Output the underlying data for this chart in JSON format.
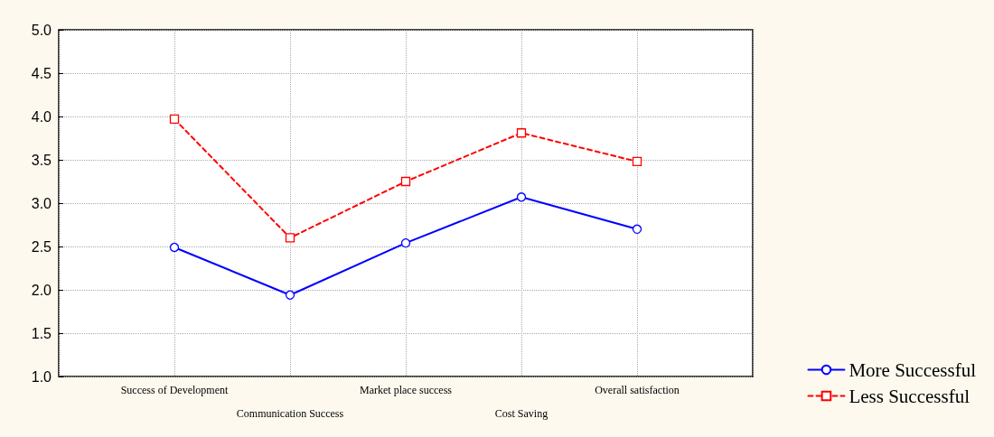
{
  "chart_data": {
    "type": "line",
    "categories": [
      "Success of Development",
      "Communication Success",
      "Market place success",
      "Cost Saving",
      "Overall satisfaction"
    ],
    "series": [
      {
        "name": "More Successful",
        "color": "#0000ff",
        "marker": "circle",
        "line_style": "solid",
        "values": [
          2.49,
          1.94,
          2.54,
          3.07,
          2.7
        ]
      },
      {
        "name": "Less Successful",
        "color": "#ff0000",
        "marker": "square",
        "line_style": "dashed",
        "values": [
          3.97,
          2.6,
          3.25,
          3.81,
          3.48
        ]
      }
    ],
    "ylim": [
      1,
      5
    ],
    "yticks": [
      {
        "value": 1,
        "label": "1.0"
      },
      {
        "value": 1.5,
        "label": "1.5"
      },
      {
        "value": 2,
        "label": "2.0"
      },
      {
        "value": 2.5,
        "label": "2.5"
      },
      {
        "value": 3,
        "label": "3.0"
      },
      {
        "value": 3.5,
        "label": "3.5"
      },
      {
        "value": 4,
        "label": "4.0"
      },
      {
        "value": 4.5,
        "label": "4.5"
      },
      {
        "value": 5,
        "label": "5.0"
      }
    ],
    "grid": true,
    "legend": "bottom right"
  }
}
